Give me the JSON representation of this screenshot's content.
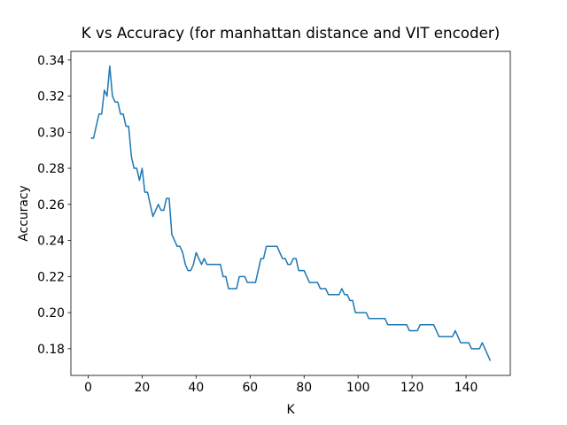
{
  "chart_data": {
    "type": "line",
    "title": "K vs Accuracy (for manhattan distance and VIT encoder)",
    "x_label": "K",
    "y_label": "Accuracy",
    "color": "#1f77b4",
    "x": [
      1,
      2,
      3,
      4,
      5,
      6,
      7,
      8,
      9,
      10,
      11,
      12,
      13,
      14,
      15,
      16,
      17,
      18,
      19,
      20,
      21,
      22,
      23,
      24,
      25,
      26,
      27,
      28,
      29,
      30,
      31,
      32,
      33,
      34,
      35,
      36,
      37,
      38,
      39,
      40,
      41,
      42,
      43,
      44,
      45,
      46,
      47,
      48,
      49,
      50,
      51,
      52,
      53,
      54,
      55,
      56,
      57,
      58,
      59,
      60,
      61,
      62,
      63,
      64,
      65,
      66,
      67,
      68,
      69,
      70,
      71,
      72,
      73,
      74,
      75,
      76,
      77,
      78,
      79,
      80,
      81,
      82,
      83,
      84,
      85,
      86,
      87,
      88,
      89,
      90,
      91,
      92,
      93,
      94,
      95,
      96,
      97,
      98,
      99,
      100,
      101,
      102,
      103,
      104,
      105,
      106,
      107,
      108,
      109,
      110,
      111,
      112,
      113,
      114,
      115,
      116,
      117,
      118,
      119,
      120,
      121,
      122,
      123,
      124,
      125,
      126,
      127,
      128,
      129,
      130,
      131,
      132,
      133,
      134,
      135,
      136,
      137,
      138,
      139,
      140,
      141,
      142,
      143,
      144,
      145,
      146,
      147,
      148,
      149
    ],
    "values": [
      0.2967,
      0.2967,
      0.3033,
      0.31,
      0.31,
      0.3233,
      0.32,
      0.3367,
      0.32,
      0.3167,
      0.3167,
      0.31,
      0.31,
      0.3033,
      0.3033,
      0.2867,
      0.28,
      0.28,
      0.2733,
      0.28,
      0.2667,
      0.2667,
      0.26,
      0.2533,
      0.2567,
      0.26,
      0.2567,
      0.2567,
      0.2633,
      0.2633,
      0.2433,
      0.24,
      0.2367,
      0.2367,
      0.2333,
      0.2267,
      0.2233,
      0.2233,
      0.2267,
      0.2333,
      0.23,
      0.2267,
      0.23,
      0.2267,
      0.2267,
      0.2267,
      0.2267,
      0.2267,
      0.2267,
      0.22,
      0.22,
      0.2133,
      0.2133,
      0.2133,
      0.2133,
      0.22,
      0.22,
      0.22,
      0.2167,
      0.2167,
      0.2167,
      0.2167,
      0.2233,
      0.23,
      0.23,
      0.2367,
      0.2367,
      0.2367,
      0.2367,
      0.2367,
      0.2333,
      0.23,
      0.23,
      0.2267,
      0.2267,
      0.23,
      0.23,
      0.2233,
      0.2233,
      0.2233,
      0.22,
      0.2167,
      0.2167,
      0.2167,
      0.2167,
      0.2133,
      0.2133,
      0.2133,
      0.21,
      0.21,
      0.21,
      0.21,
      0.21,
      0.2133,
      0.21,
      0.21,
      0.2067,
      0.2067,
      0.2,
      0.2,
      0.2,
      0.2,
      0.2,
      0.1967,
      0.1967,
      0.1967,
      0.1967,
      0.1967,
      0.1967,
      0.1967,
      0.1933,
      0.1933,
      0.1933,
      0.1933,
      0.1933,
      0.1933,
      0.1933,
      0.1933,
      0.19,
      0.19,
      0.19,
      0.19,
      0.1933,
      0.1933,
      0.1933,
      0.1933,
      0.1933,
      0.1933,
      0.19,
      0.1867,
      0.1867,
      0.1867,
      0.1867,
      0.1867,
      0.1867,
      0.19,
      0.1867,
      0.1833,
      0.1833,
      0.1833,
      0.1833,
      0.18,
      0.18,
      0.18,
      0.18,
      0.1833,
      0.18,
      0.1767,
      0.1733
    ],
    "xlim": [
      -6.4,
      156.4
    ],
    "ylim": [
      0.1652,
      0.3448
    ],
    "xticks": [
      0,
      20,
      40,
      60,
      80,
      100,
      120,
      140
    ],
    "yticks": [
      0.18,
      {
        "value": 0.2,
        "label": "0.20"
      },
      0.22,
      0.24,
      0.26,
      0.28,
      {
        "value": 0.3,
        "label": "0.30"
      },
      0.32,
      0.34
    ]
  }
}
